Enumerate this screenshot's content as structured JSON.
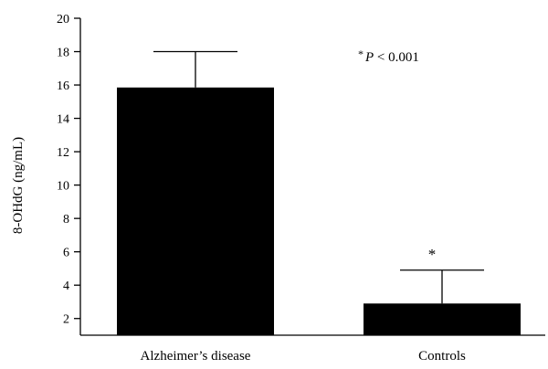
{
  "chart_data": {
    "type": "bar",
    "title": "",
    "xlabel": "",
    "ylabel": "8-OHdG (ng/mL)",
    "categories": [
      "Alzheimer’s disease",
      "Controls"
    ],
    "values": [
      15.85,
      2.9
    ],
    "error": [
      2.15,
      2.0
    ],
    "significance": [
      "",
      "*"
    ],
    "ylim": [
      1,
      20
    ],
    "yticks": [
      2,
      4,
      6,
      8,
      10,
      12,
      14,
      16,
      18,
      20
    ],
    "grid": false,
    "annotation": {
      "prefix": "*",
      "p_symbol": "P",
      "text": " < 0.001"
    },
    "colors": {
      "bar": "#000000",
      "axis": "#000000"
    }
  }
}
